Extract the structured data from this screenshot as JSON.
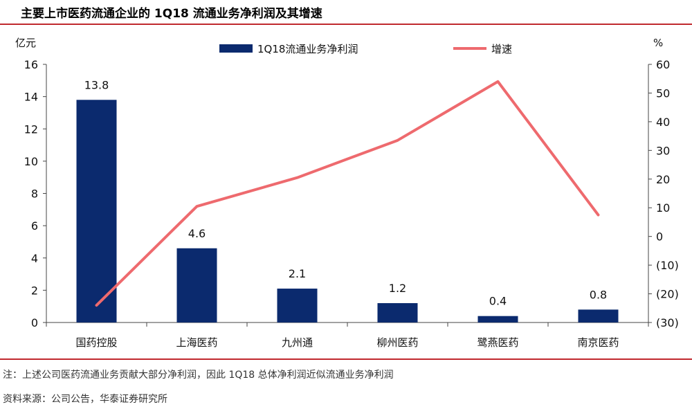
{
  "title": "主要上市医药流通企业的 1Q18 流通业务净利润及其增速",
  "note": "注：上述公司医药流通业务贡献大部分净利润，因此 1Q18 总体净利润近似流通业务净利润",
  "source": "资料来源：公司公告，华泰证券研究所",
  "colors": {
    "bar": "#0b2a6e",
    "line": "#ee6a6e",
    "rule": "#c0282d"
  },
  "chart_data": {
    "type": "bar+line",
    "categories": [
      "国药控股",
      "上海医药",
      "九州通",
      "柳州医药",
      "鹭燕医药",
      "南京医药"
    ],
    "left_axis": {
      "unit": "亿元",
      "ylim": [
        0,
        16
      ],
      "ticks": [
        "0",
        "2",
        "4",
        "6",
        "8",
        "10",
        "12",
        "14",
        "16"
      ]
    },
    "right_axis": {
      "unit": "%",
      "ylim": [
        -30,
        60
      ],
      "ticks": [
        "(30)",
        "(20)",
        "(10)",
        "0",
        "10",
        "20",
        "30",
        "40",
        "50",
        "60"
      ]
    },
    "series": [
      {
        "name": "1Q18流通业务净利润",
        "kind": "bar",
        "axis": "left",
        "values": [
          13.8,
          4.6,
          2.1,
          1.2,
          0.4,
          0.8
        ],
        "labels": [
          "13.8",
          "4.6",
          "2.1",
          "1.2",
          "0.4",
          "0.8"
        ]
      },
      {
        "name": "增速",
        "kind": "line",
        "axis": "right",
        "values": [
          -24,
          10.5,
          20.5,
          33.5,
          54,
          7.5
        ]
      }
    ],
    "legend_position": "top"
  }
}
